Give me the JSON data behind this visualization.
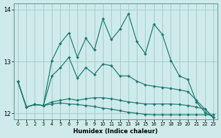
{
  "xlabel": "Humidex (Indice chaleur)",
  "bg_color": "#ceeaea",
  "grid_color": "#9dc8c8",
  "line_color": "#1e7b72",
  "xlim": [
    -0.5,
    23.5
  ],
  "ylim": [
    11.88,
    14.12
  ],
  "yticks": [
    12,
    13,
    14
  ],
  "xticks": [
    0,
    1,
    2,
    3,
    4,
    5,
    6,
    7,
    8,
    9,
    10,
    11,
    12,
    13,
    14,
    15,
    16,
    17,
    18,
    19,
    20,
    21,
    22,
    23
  ],
  "line1_x": [
    0,
    1,
    2,
    3,
    4,
    5,
    6,
    7,
    8,
    9,
    10,
    11,
    12,
    13,
    14,
    15,
    16,
    17,
    18,
    19,
    20,
    21,
    22,
    23
  ],
  "line1_y": [
    12.62,
    12.12,
    12.17,
    12.15,
    12.18,
    12.2,
    12.18,
    12.17,
    12.15,
    12.13,
    12.1,
    12.08,
    12.05,
    12.02,
    12.0,
    11.98,
    11.97,
    11.97,
    11.97,
    11.97,
    11.97,
    11.97,
    11.97,
    11.97
  ],
  "line2_x": [
    0,
    1,
    2,
    3,
    4,
    5,
    6,
    7,
    8,
    9,
    10,
    11,
    12,
    13,
    14,
    15,
    16,
    17,
    18,
    19,
    20,
    21,
    22,
    23
  ],
  "line2_y": [
    12.62,
    12.12,
    12.17,
    12.15,
    12.22,
    12.25,
    12.28,
    12.25,
    12.28,
    12.3,
    12.3,
    12.28,
    12.25,
    12.22,
    12.2,
    12.18,
    12.18,
    12.18,
    12.18,
    12.17,
    12.15,
    12.12,
    12.08,
    11.92
  ],
  "line3_x": [
    0,
    1,
    2,
    3,
    4,
    5,
    6,
    7,
    8,
    9,
    10,
    11,
    12,
    13,
    14,
    15,
    16,
    17,
    18,
    19,
    20,
    21,
    22,
    23
  ],
  "line3_y": [
    12.62,
    12.12,
    12.17,
    12.15,
    12.72,
    12.88,
    13.08,
    12.68,
    12.88,
    12.75,
    12.95,
    12.92,
    12.72,
    12.72,
    12.62,
    12.55,
    12.52,
    12.5,
    12.48,
    12.45,
    12.42,
    12.25,
    12.08,
    11.92
  ],
  "line4_x": [
    0,
    1,
    2,
    3,
    4,
    5,
    6,
    7,
    8,
    9,
    10,
    11,
    12,
    13,
    14,
    15,
    16,
    17,
    18,
    19,
    20,
    21,
    22,
    23
  ],
  "line4_y": [
    12.62,
    12.12,
    12.17,
    12.15,
    13.02,
    13.35,
    13.55,
    13.08,
    13.45,
    13.22,
    13.82,
    13.42,
    13.62,
    13.92,
    13.38,
    13.15,
    13.72,
    13.52,
    13.02,
    12.72,
    12.65,
    12.22,
    12.02,
    11.92
  ]
}
